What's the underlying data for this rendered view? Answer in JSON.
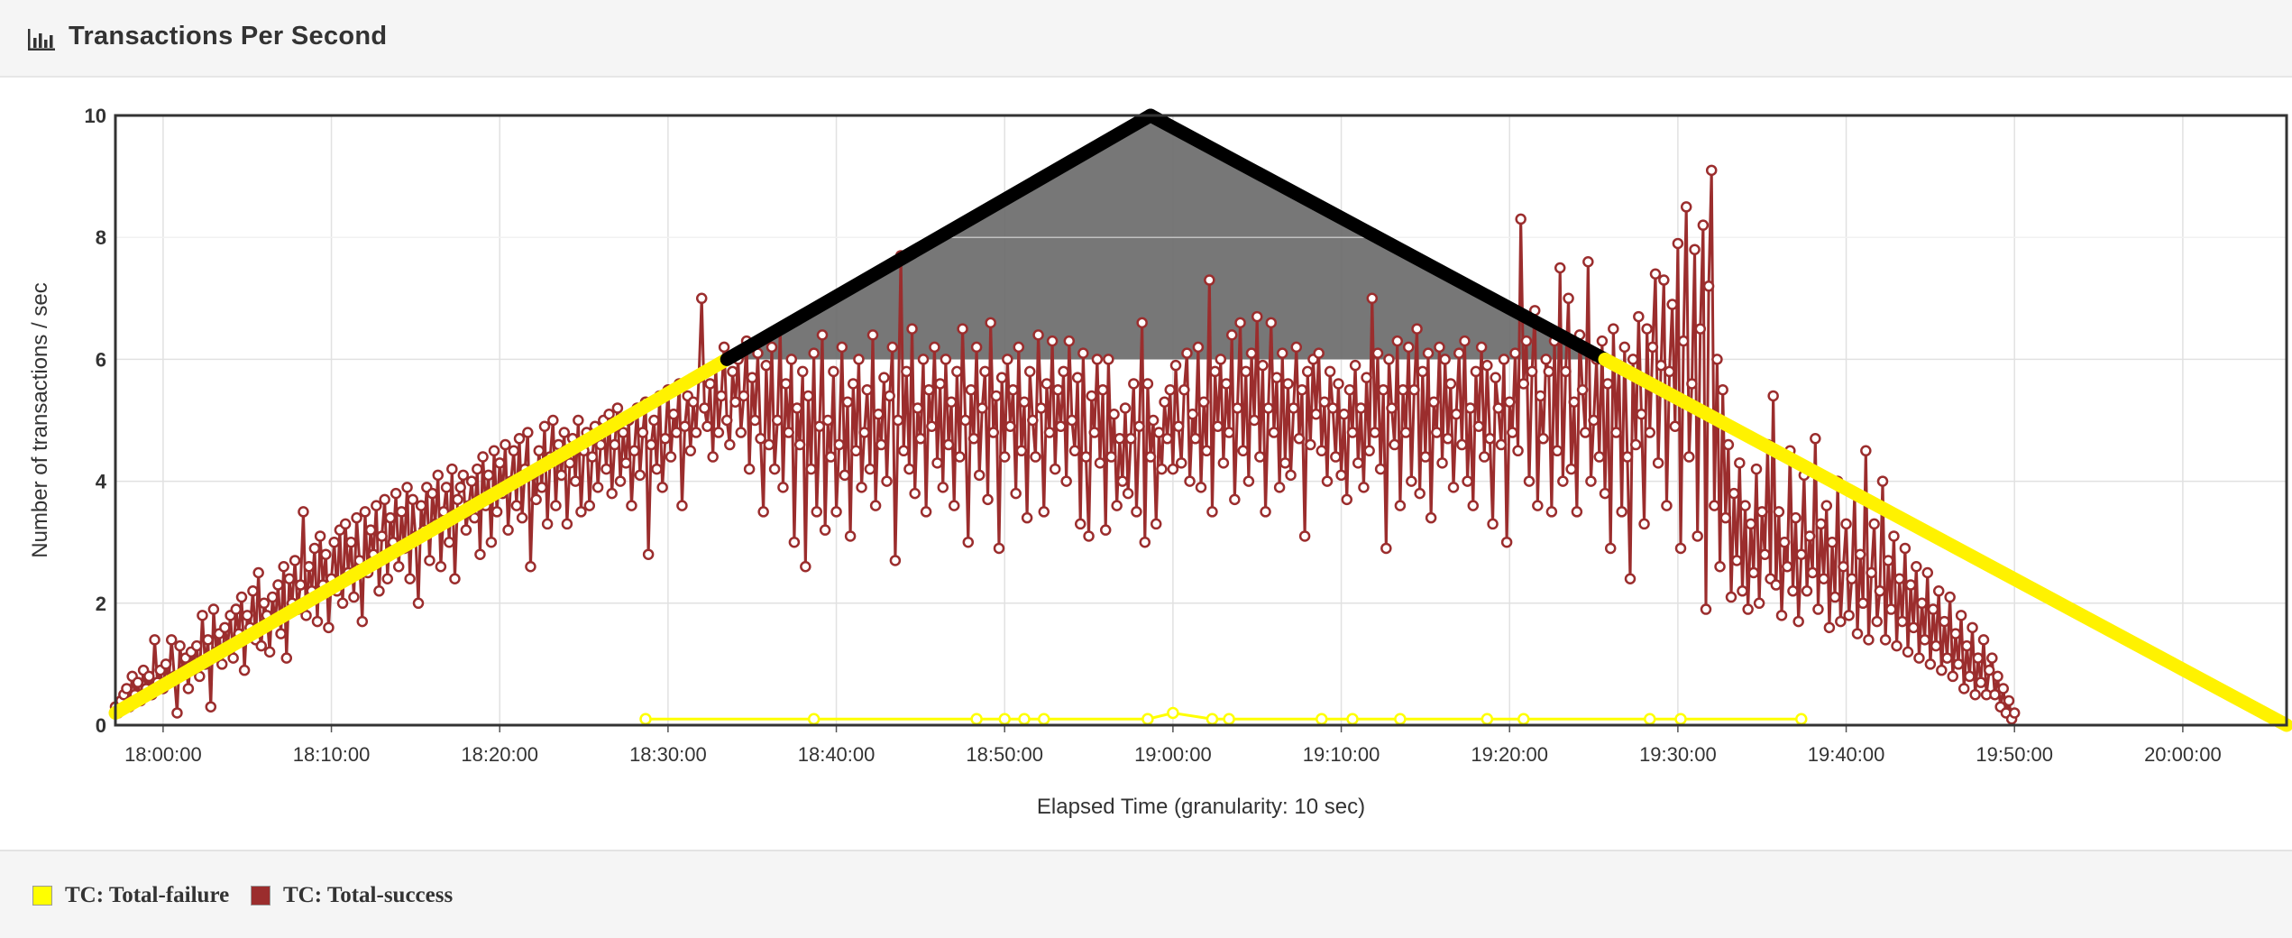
{
  "header": {
    "title": "Transactions Per Second",
    "icon": "bar-chart-icon"
  },
  "legend": [
    {
      "label": "TC: Total-failure",
      "color": "#ffff00"
    },
    {
      "label": "TC: Total-success",
      "color": "#9b2d2d"
    }
  ],
  "colors": {
    "success": "#9b2d2d",
    "failure": "#ffff00",
    "ramp": "#fff200",
    "peak": "#000000",
    "shade": "#6b6b6b"
  },
  "chart_data": {
    "type": "line",
    "xlabel": "Elapsed Time (granularity: 10 sec)",
    "ylabel": "Number of transactions / sec",
    "x_unit": "time (HH:MM:SS)",
    "xlim": [
      "17:57:10",
      "20:06:10"
    ],
    "ylim": [
      0,
      10
    ],
    "grid": true,
    "legend_position": "bottom-left",
    "x_ticks": [
      "18:00:00",
      "18:10:00",
      "18:20:00",
      "18:30:00",
      "18:40:00",
      "18:50:00",
      "19:00:00",
      "19:10:00",
      "19:20:00",
      "19:30:00",
      "19:40:00",
      "19:50:00",
      "20:00:00"
    ],
    "y_ticks": [
      0,
      2,
      4,
      6,
      8,
      10
    ],
    "series": [
      {
        "name": "TC: Total-success",
        "color": "#9b2d2d",
        "granularity_sec": 10,
        "start": "17:57:10",
        "values": [
          0.3,
          0.2,
          0.4,
          0.5,
          0.6,
          0.3,
          0.8,
          0.5,
          0.7,
          0.4,
          0.9,
          0.6,
          0.8,
          0.5,
          1.4,
          0.7,
          0.9,
          0.6,
          1.0,
          0.7,
          1.4,
          0.8,
          0.2,
          1.3,
          0.9,
          1.1,
          0.6,
          1.2,
          1.0,
          1.3,
          0.8,
          1.8,
          1.0,
          1.4,
          0.3,
          1.9,
          1.2,
          1.5,
          1.0,
          1.6,
          1.3,
          1.8,
          1.1,
          1.9,
          1.5,
          2.1,
          0.9,
          1.8,
          1.6,
          2.2,
          1.4,
          2.5,
          1.3,
          2.0,
          1.8,
          1.2,
          2.1,
          1.7,
          2.3,
          1.5,
          2.6,
          1.1,
          2.4,
          2.0,
          2.7,
          1.9,
          2.3,
          3.5,
          1.8,
          2.6,
          2.2,
          2.9,
          1.7,
          3.1,
          2.3,
          2.8,
          1.6,
          2.4,
          3.0,
          2.2,
          3.2,
          2.0,
          3.3,
          2.5,
          3.0,
          2.1,
          3.4,
          2.7,
          1.7,
          3.5,
          2.5,
          3.2,
          2.8,
          3.6,
          2.2,
          3.1,
          3.7,
          2.4,
          3.4,
          3.0,
          3.8,
          2.6,
          3.5,
          2.9,
          3.9,
          2.4,
          3.7,
          3.1,
          2.0,
          3.6,
          3.2,
          3.9,
          2.7,
          3.8,
          3.3,
          4.1,
          2.6,
          3.5,
          3.9,
          3.0,
          4.2,
          2.4,
          3.7,
          3.9,
          4.1,
          3.2,
          3.6,
          4.0,
          3.4,
          4.2,
          2.8,
          4.4,
          3.6,
          4.1,
          3.0,
          4.5,
          3.5,
          4.3,
          3.8,
          4.6,
          3.2,
          4.0,
          4.5,
          3.6,
          4.7,
          3.4,
          4.2,
          4.8,
          2.6,
          4.1,
          3.7,
          4.5,
          3.9,
          4.9,
          3.3,
          4.4,
          5.0,
          3.6,
          4.6,
          4.1,
          4.8,
          3.3,
          4.3,
          4.7,
          4.0,
          5.0,
          3.5,
          4.5,
          4.8,
          3.6,
          4.4,
          4.9,
          3.9,
          4.6,
          5.0,
          4.2,
          5.1,
          3.8,
          4.6,
          5.2,
          4.0,
          4.8,
          4.3,
          5.0,
          3.6,
          4.5,
          5.2,
          4.1,
          4.8,
          5.3,
          2.8,
          4.6,
          5.0,
          4.2,
          5.4,
          3.9,
          4.7,
          5.5,
          4.4,
          5.1,
          4.8,
          5.6,
          3.6,
          4.9,
          5.4,
          4.5,
          5.3,
          4.8,
          5.7,
          7.0,
          5.2,
          4.9,
          5.6,
          4.4,
          5.9,
          4.8,
          5.4,
          6.2,
          5.0,
          4.6,
          5.8,
          5.3,
          6.0,
          4.8,
          5.4,
          6.3,
          4.2,
          5.7,
          5.0,
          6.1,
          4.7,
          3.5,
          5.9,
          4.6,
          6.2,
          4.2,
          5.0,
          6.5,
          3.9,
          5.6,
          4.8,
          6.0,
          3.0,
          5.2,
          4.6,
          5.8,
          2.6,
          5.4,
          4.2,
          6.1,
          3.5,
          4.9,
          6.4,
          3.2,
          5.0,
          4.4,
          5.8,
          3.5,
          4.6,
          6.2,
          4.1,
          5.3,
          3.1,
          5.6,
          4.5,
          6.0,
          3.9,
          4.8,
          5.5,
          4.2,
          6.4,
          3.6,
          5.1,
          4.6,
          5.7,
          4.0,
          5.4,
          6.2,
          2.7,
          5.0,
          7.7,
          4.5,
          5.8,
          4.2,
          6.5,
          3.8,
          5.2,
          4.7,
          6.0,
          3.5,
          5.5,
          4.9,
          6.2,
          4.3,
          5.6,
          3.9,
          6.0,
          4.6,
          5.3,
          3.6,
          5.8,
          4.4,
          6.5,
          5.0,
          3.0,
          5.5,
          4.7,
          6.2,
          4.1,
          5.2,
          5.8,
          3.7,
          6.6,
          4.8,
          5.4,
          2.9,
          5.7,
          4.4,
          6.0,
          4.9,
          5.5,
          3.8,
          6.2,
          4.5,
          5.3,
          3.4,
          5.8,
          5.0,
          4.4,
          6.4,
          5.2,
          3.5,
          5.6,
          4.8,
          6.3,
          4.2,
          5.5,
          4.9,
          5.8,
          4.0,
          6.3,
          5.0,
          4.5,
          5.7,
          3.3,
          6.1,
          4.4,
          3.1,
          5.4,
          4.8,
          6.0,
          4.3,
          5.5,
          3.2,
          6.0,
          4.4,
          5.1,
          3.6,
          4.7,
          4.0,
          5.2,
          3.8,
          4.7,
          5.6,
          3.5,
          4.9,
          6.6,
          3.0,
          5.6,
          4.4,
          5.0,
          3.3,
          4.8,
          4.2,
          5.3,
          4.7,
          5.5,
          4.2,
          5.9,
          4.9,
          4.3,
          5.5,
          6.1,
          4.0,
          5.1,
          4.7,
          6.2,
          3.9,
          5.3,
          4.5,
          7.3,
          3.5,
          5.8,
          4.9,
          6.0,
          4.3,
          5.6,
          4.8,
          6.4,
          3.7,
          5.2,
          6.6,
          4.5,
          5.8,
          4.0,
          6.1,
          5.0,
          6.7,
          4.4,
          5.9,
          3.5,
          5.2,
          6.6,
          4.8,
          5.7,
          3.9,
          6.1,
          4.3,
          5.6,
          4.1,
          5.2,
          6.2,
          4.7,
          5.5,
          3.1,
          5.8,
          4.6,
          6.0,
          5.1,
          6.1,
          4.5,
          5.3,
          4.0,
          5.8,
          5.2,
          4.4,
          5.6,
          4.1,
          5.1,
          3.7,
          5.5,
          4.8,
          5.9,
          4.3,
          5.2,
          3.9,
          5.7,
          4.5,
          7.0,
          4.8,
          6.1,
          4.2,
          5.5,
          2.9,
          6.0,
          5.2,
          4.6,
          6.3,
          3.6,
          5.5,
          4.8,
          6.2,
          4.0,
          5.5,
          6.5,
          3.8,
          5.8,
          4.4,
          6.1,
          3.4,
          5.3,
          4.8,
          6.2,
          4.3,
          6.0,
          4.7,
          5.6,
          3.9,
          5.1,
          6.1,
          4.6,
          6.3,
          4.0,
          5.2,
          3.6,
          5.8,
          4.9,
          6.2,
          4.4,
          5.9,
          4.7,
          3.3,
          5.7,
          5.2,
          4.6,
          6.0,
          3.0,
          5.3,
          4.8,
          6.1,
          4.5,
          8.3,
          5.6,
          6.3,
          4.0,
          5.8,
          6.8,
          3.6,
          5.4,
          4.7,
          6.0,
          5.8,
          3.5,
          6.3,
          4.5,
          7.5,
          4.0,
          5.8,
          7.0,
          4.2,
          5.3,
          3.5,
          6.4,
          5.5,
          4.8,
          7.6,
          4.0,
          5.0,
          6.0,
          4.4,
          6.3,
          3.8,
          5.6,
          2.9,
          6.5,
          4.8,
          5.9,
          3.5,
          6.2,
          4.4,
          2.4,
          6.0,
          4.6,
          6.7,
          5.1,
          3.3,
          6.5,
          4.8,
          6.2,
          7.4,
          4.3,
          5.9,
          7.3,
          3.6,
          5.8,
          6.9,
          4.9,
          7.9,
          2.9,
          6.3,
          8.5,
          4.4,
          5.6,
          7.8,
          3.1,
          6.5,
          8.2,
          1.9,
          7.2,
          9.1,
          3.6,
          6.0,
          2.6,
          5.5,
          3.4,
          4.6,
          2.1,
          3.8,
          2.7,
          4.3,
          2.2,
          3.6,
          1.9,
          3.3,
          2.5,
          4.2,
          2.0,
          3.5,
          2.8,
          4.6,
          2.4,
          5.4,
          2.3,
          3.5,
          1.8,
          3.0,
          2.6,
          4.5,
          2.2,
          3.4,
          1.7,
          2.8,
          4.1,
          2.2,
          3.1,
          2.5,
          4.7,
          1.9,
          3.3,
          2.4,
          3.6,
          1.6,
          3.0,
          2.1,
          4.0,
          1.7,
          2.6,
          3.3,
          1.8,
          2.4,
          3.8,
          1.5,
          2.8,
          2.0,
          4.5,
          1.4,
          2.5,
          3.3,
          1.7,
          2.2,
          4.0,
          1.4,
          2.7,
          1.9,
          3.1,
          1.3,
          2.4,
          1.7,
          2.9,
          1.2,
          2.3,
          1.6,
          2.6,
          1.1,
          2.0,
          1.4,
          2.5,
          1.0,
          1.9,
          1.3,
          2.2,
          0.9,
          1.7,
          1.1,
          2.1,
          0.8,
          1.5,
          1.0,
          1.8,
          0.6,
          1.3,
          0.8,
          1.6,
          0.5,
          1.1,
          0.7,
          1.4,
          0.5,
          0.9,
          1.1,
          0.5,
          0.8,
          0.3,
          0.6,
          0.2,
          0.4,
          0.1,
          0.2
        ]
      },
      {
        "name": "TC: Total-failure",
        "color": "#ffff00",
        "points": [
          [
            "18:28:40",
            0.1
          ],
          [
            "18:38:40",
            0.1
          ],
          [
            "18:48:20",
            0.1
          ],
          [
            "18:50:00",
            0.1
          ],
          [
            "18:51:10",
            0.1
          ],
          [
            "18:52:20",
            0.1
          ],
          [
            "18:58:30",
            0.1
          ],
          [
            "19:00:00",
            0.2
          ],
          [
            "19:02:20",
            0.1
          ],
          [
            "19:03:20",
            0.1
          ],
          [
            "19:08:50",
            0.1
          ],
          [
            "19:10:40",
            0.1
          ],
          [
            "19:13:30",
            0.1
          ],
          [
            "19:18:40",
            0.1
          ],
          [
            "19:20:50",
            0.1
          ],
          [
            "19:28:20",
            0.1
          ],
          [
            "19:30:10",
            0.1
          ],
          [
            "19:37:20",
            0.1
          ]
        ]
      }
    ],
    "overlay": {
      "segments": [
        {
          "name": "ramp-up",
          "color": "#fff200",
          "from": [
            "17:57:10",
            0.2
          ],
          "to": [
            "18:33:30",
            6.0
          ]
        },
        {
          "name": "peak-left",
          "color": "#000000",
          "from": [
            "18:33:30",
            6.0
          ],
          "to": [
            "18:58:40",
            10.0
          ]
        },
        {
          "name": "peak-right",
          "color": "#000000",
          "from": [
            "18:58:40",
            10.0
          ],
          "to": [
            "19:25:40",
            6.0
          ]
        },
        {
          "name": "ramp-down",
          "color": "#fff200",
          "from": [
            "19:25:40",
            6.0
          ],
          "to": [
            "20:06:10",
            0.0
          ]
        }
      ],
      "shaded_triangle": [
        [
          "18:33:30",
          6.0
        ],
        [
          "18:58:40",
          10.0
        ],
        [
          "19:25:40",
          6.0
        ]
      ]
    }
  }
}
